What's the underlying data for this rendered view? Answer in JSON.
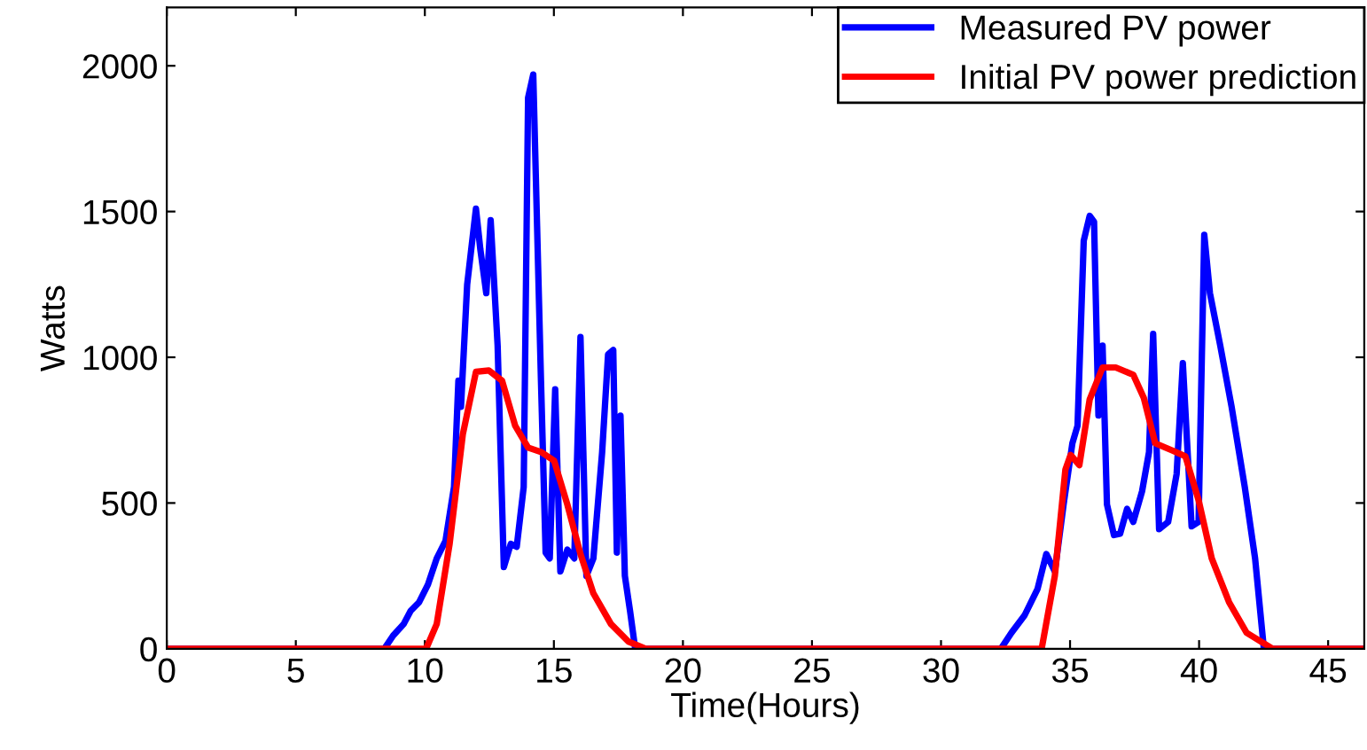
{
  "chart_data": {
    "type": "line",
    "xlabel": "Time(Hours)",
    "ylabel": "Watts",
    "xlim": [
      0,
      46.4
    ],
    "ylim": [
      0,
      2200
    ],
    "xticks": [
      0,
      5,
      10,
      15,
      20,
      25,
      30,
      35,
      40,
      45
    ],
    "yticks": [
      0,
      500,
      1000,
      1500,
      2000
    ],
    "grid": false,
    "legend": "top right",
    "marker": "none",
    "line_style": "solid",
    "series": [
      {
        "name": "Measured PV power",
        "color": "#0000ff",
        "x": [
          0,
          8.43,
          8.77,
          9.18,
          9.45,
          9.78,
          10.12,
          10.46,
          10.8,
          11.13,
          11.3,
          11.4,
          11.64,
          11.98,
          12.15,
          12.38,
          12.55,
          12.82,
          13.06,
          13.33,
          13.56,
          13.83,
          14.0,
          14.2,
          14.5,
          14.68,
          14.84,
          15.05,
          15.25,
          15.52,
          15.79,
          16.03,
          16.26,
          16.53,
          16.87,
          17.1,
          17.3,
          17.44,
          17.58,
          17.75,
          17.95,
          18.15,
          32.32,
          32.73,
          33.24,
          33.74,
          34.08,
          34.41,
          34.75,
          35.09,
          35.29,
          35.53,
          35.76,
          35.93,
          36.1,
          36.26,
          36.43,
          36.7,
          36.94,
          37.21,
          37.45,
          37.79,
          38.06,
          38.22,
          38.45,
          38.8,
          39.13,
          39.37,
          39.71,
          39.98,
          40.2,
          40.42,
          40.82,
          41.26,
          41.77,
          42.17,
          42.51,
          46.4
        ],
        "values": [
          0,
          0,
          45,
          85,
          130,
          160,
          220,
          310,
          370,
          555,
          920,
          830,
          1250,
          1510,
          1370,
          1220,
          1470,
          1040,
          280,
          360,
          350,
          555,
          1890,
          1970,
          920,
          330,
          310,
          890,
          265,
          340,
          310,
          1070,
          250,
          310,
          675,
          1010,
          1025,
          330,
          800,
          250,
          130,
          0,
          0,
          55,
          115,
          205,
          325,
          265,
          495,
          705,
          765,
          1400,
          1485,
          1465,
          800,
          1040,
          495,
          390,
          395,
          480,
          435,
          540,
          675,
          1080,
          410,
          435,
          600,
          980,
          420,
          435,
          1420,
          1220,
          1040,
          830,
          555,
          310,
          0,
          0
        ]
      },
      {
        "name": "Initial PV power prediction",
        "color": "#ff0000",
        "x": [
          0,
          10.05,
          10.46,
          10.96,
          11.47,
          11.98,
          12.48,
          12.99,
          13.5,
          14.0,
          14.5,
          15.01,
          15.52,
          16.03,
          16.53,
          17.21,
          17.88,
          18.56,
          33.9,
          34.41,
          34.82,
          35.02,
          35.36,
          35.76,
          36.26,
          36.77,
          37.45,
          37.86,
          38.3,
          38.97,
          39.47,
          39.98,
          40.49,
          41.16,
          41.84,
          42.85,
          46.4
        ],
        "values": [
          0,
          0,
          85,
          360,
          735,
          950,
          955,
          920,
          765,
          690,
          675,
          645,
          495,
          325,
          190,
          85,
          25,
          0,
          0,
          250,
          615,
          665,
          630,
          855,
          965,
          965,
          940,
          860,
          705,
          680,
          660,
          510,
          310,
          160,
          55,
          0,
          0
        ]
      }
    ]
  }
}
